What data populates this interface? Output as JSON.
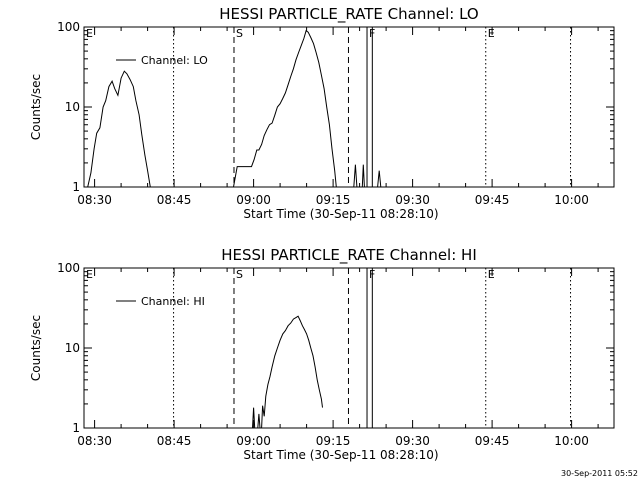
{
  "footer": {
    "timestamp": "30-Sep-2011 05:52"
  },
  "chart_data": [
    {
      "type": "line",
      "scale": "log-y",
      "title": "HESSI PARTICLE_RATE Channel: LO",
      "xlabel": "Start Time (30-Sep-11 08:28:10)",
      "ylabel": "Counts/sec",
      "x_tick_labels": [
        "08:30",
        "08:45",
        "09:00",
        "09:15",
        "09:30",
        "09:45",
        "10:00"
      ],
      "x_ticks": [
        30,
        45,
        60,
        75,
        90,
        105,
        120
      ],
      "xlim": [
        28,
        128
      ],
      "y_tick_labels": [
        "1",
        "10",
        "100"
      ],
      "y_ticks": [
        1,
        10,
        100
      ],
      "ylim": [
        1,
        100
      ],
      "legend": {
        "label": "Channel: LO",
        "position": "top-left"
      },
      "flags": [
        {
          "label": "E",
          "x": 28,
          "style": "dotted"
        },
        {
          "label": "S",
          "x": 56.3,
          "style": "dashed"
        },
        {
          "label": "",
          "x": 77.9,
          "style": "dashed"
        },
        {
          "label": "F",
          "x": 81.4,
          "style": "solid"
        },
        {
          "label": "",
          "x": 82.4,
          "style": "solid"
        },
        {
          "label": "E",
          "x": 103.8,
          "style": "dotted"
        },
        {
          "label": "",
          "x": 44.9,
          "style": "dotted"
        },
        {
          "label": "",
          "x": 119.8,
          "style": "dotted"
        }
      ],
      "series": [
        {
          "name": "Channel: LO",
          "segments": [
            [
              [
                28.7,
                1
              ],
              [
                29.3,
                1.5
              ],
              [
                29.9,
                3
              ],
              [
                30.4,
                4.7
              ],
              [
                31.0,
                5.5
              ],
              [
                31.6,
                10
              ],
              [
                32.1,
                12
              ],
              [
                32.7,
                18
              ],
              [
                33.3,
                21
              ],
              [
                33.8,
                17
              ],
              [
                34.4,
                14
              ],
              [
                35.0,
                23
              ],
              [
                35.6,
                28
              ],
              [
                36.1,
                26
              ],
              [
                36.7,
                22
              ],
              [
                37.3,
                18
              ],
              [
                37.8,
                12
              ],
              [
                38.4,
                8
              ],
              [
                38.9,
                4.5
              ],
              [
                39.5,
                2.5
              ],
              [
                40.0,
                1.6
              ],
              [
                40.5,
                1
              ]
            ],
            [
              [
                56.2,
                1
              ],
              [
                56.9,
                1.8
              ],
              [
                57.8,
                1.8
              ],
              [
                58.7,
                1.8
              ],
              [
                59.6,
                1.8
              ],
              [
                60.1,
                2.2
              ],
              [
                60.6,
                2.9
              ],
              [
                61.0,
                2.9
              ],
              [
                61.5,
                3.4
              ],
              [
                62.0,
                4.4
              ],
              [
                62.5,
                5.2
              ],
              [
                63.0,
                6.0
              ],
              [
                63.5,
                6.3
              ],
              [
                64.0,
                7.9
              ],
              [
                64.5,
                10
              ],
              [
                65.0,
                11
              ],
              [
                65.5,
                12.8
              ],
              [
                66.0,
                15
              ],
              [
                66.5,
                19
              ],
              [
                67.0,
                24
              ],
              [
                67.5,
                30
              ],
              [
                68.0,
                39
              ],
              [
                68.5,
                48
              ],
              [
                69.0,
                59
              ],
              [
                69.5,
                72
              ],
              [
                69.9,
                90
              ],
              [
                70.3,
                86
              ],
              [
                70.8,
                74
              ],
              [
                71.3,
                62
              ],
              [
                71.8,
                48
              ],
              [
                72.3,
                36
              ],
              [
                72.8,
                25
              ],
              [
                73.3,
                17
              ],
              [
                73.8,
                10
              ],
              [
                74.3,
                6
              ],
              [
                74.8,
                3
              ],
              [
                75.3,
                1.6
              ],
              [
                75.6,
                1
              ]
            ],
            [
              [
                78.9,
                1
              ],
              [
                79.2,
                1.9
              ],
              [
                79.5,
                1
              ]
            ],
            [
              [
                80.5,
                1
              ],
              [
                80.7,
                1.9
              ],
              [
                80.9,
                1
              ]
            ],
            [
              [
                83.4,
                1
              ],
              [
                83.7,
                1.6
              ],
              [
                84.0,
                1
              ]
            ]
          ]
        }
      ]
    },
    {
      "type": "line",
      "scale": "log-y",
      "title": "HESSI PARTICLE_RATE Channel: HI",
      "xlabel": "Start Time (30-Sep-11 08:28:10)",
      "ylabel": "Counts/sec",
      "x_tick_labels": [
        "08:30",
        "08:45",
        "09:00",
        "09:15",
        "09:30",
        "09:45",
        "10:00"
      ],
      "x_ticks": [
        30,
        45,
        60,
        75,
        90,
        105,
        120
      ],
      "xlim": [
        28,
        128
      ],
      "y_tick_labels": [
        "1",
        "10",
        "100"
      ],
      "y_ticks": [
        1,
        10,
        100
      ],
      "ylim": [
        1,
        100
      ],
      "legend": {
        "label": "Channel: HI",
        "position": "top-left"
      },
      "flags": [
        {
          "label": "E",
          "x": 28,
          "style": "dotted"
        },
        {
          "label": "S",
          "x": 56.3,
          "style": "dashed"
        },
        {
          "label": "",
          "x": 77.9,
          "style": "dashed"
        },
        {
          "label": "F",
          "x": 81.4,
          "style": "solid"
        },
        {
          "label": "",
          "x": 82.4,
          "style": "solid"
        },
        {
          "label": "E",
          "x": 103.8,
          "style": "dotted"
        },
        {
          "label": "",
          "x": 44.9,
          "style": "dotted"
        },
        {
          "label": "",
          "x": 119.8,
          "style": "dotted"
        }
      ],
      "series": [
        {
          "name": "Channel: HI",
          "segments": [
            [
              [
                59.8,
                1
              ],
              [
                60.0,
                1.8
              ],
              [
                60.2,
                1
              ]
            ],
            [
              [
                60.8,
                1
              ],
              [
                61.0,
                1.5
              ],
              [
                61.2,
                1
              ]
            ],
            [
              [
                61.5,
                1
              ],
              [
                61.7,
                1.9
              ],
              [
                62.0,
                1.4
              ],
              [
                62.3,
                2.5
              ],
              [
                62.7,
                3.5
              ],
              [
                63.1,
                4.4
              ],
              [
                63.5,
                5.8
              ],
              [
                64.0,
                8
              ],
              [
                64.5,
                10
              ],
              [
                65.0,
                12.5
              ],
              [
                65.5,
                15
              ],
              [
                66.0,
                16.5
              ],
              [
                66.5,
                19
              ],
              [
                67.0,
                20.5
              ],
              [
                67.5,
                23
              ],
              [
                68.0,
                24
              ],
              [
                68.4,
                25
              ],
              [
                68.8,
                22
              ],
              [
                69.2,
                19
              ],
              [
                69.6,
                17
              ],
              [
                70.0,
                15
              ],
              [
                70.4,
                12.5
              ],
              [
                70.8,
                10
              ],
              [
                71.2,
                8
              ],
              [
                71.6,
                5.8
              ],
              [
                72.0,
                4
              ],
              [
                72.4,
                3
              ],
              [
                72.8,
                2.3
              ],
              [
                73.0,
                1.8
              ]
            ]
          ]
        }
      ]
    }
  ]
}
